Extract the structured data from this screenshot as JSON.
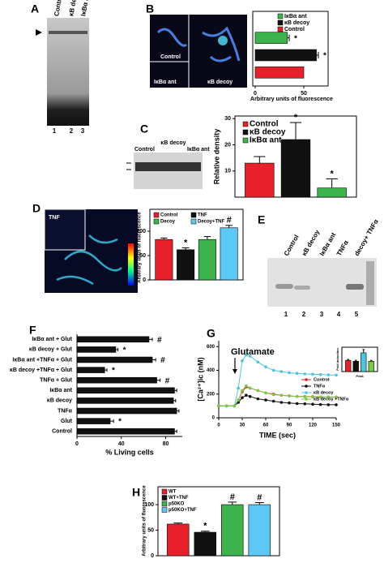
{
  "panels": {
    "A": {
      "letter": "A",
      "lanes": [
        "Control",
        "κB decoy",
        "IκBα ant"
      ],
      "numbers": [
        "1",
        "2",
        "3"
      ]
    },
    "B": {
      "images": [
        "Control",
        "IκBα ant",
        "κB decoy"
      ]
    },
    "C": {
      "lanes": [
        "Control",
        "κB decoy",
        "IκBα ant"
      ]
    },
    "D": {
      "images": [
        "TNF"
      ]
    },
    "E": {
      "letter": "E",
      "lanes": [
        "Control",
        "κB decoy",
        "IκBα ant",
        "TNFα",
        "decoy+ TNFα"
      ],
      "numbers": [
        "1",
        "2",
        "3",
        "4",
        "5"
      ]
    }
  },
  "chart_data": [
    {
      "type": "hbar",
      "panel": "B",
      "xlabel": "Arbitrary units of fluorescence",
      "categories": [
        "IκBα ant",
        "κB decoy",
        "Control"
      ],
      "values": [
        33,
        63,
        50
      ],
      "errors": [
        2,
        2,
        null
      ],
      "annotations": [
        "*",
        "*",
        null
      ],
      "colors": [
        "#3cb44b",
        "#111111",
        "#e8202a"
      ],
      "xlim": [
        0,
        75
      ],
      "xticks": [
        0,
        50
      ]
    },
    {
      "type": "bar",
      "panel": "C",
      "ylabel": "Relative density",
      "categories": [
        "Control",
        "κB decoy",
        "IκBα ant"
      ],
      "values": [
        13,
        22,
        3.5
      ],
      "errors": [
        2.5,
        6.5,
        3.5
      ],
      "annotations": [
        null,
        "*",
        "*"
      ],
      "colors": [
        "#e8202a",
        "#111111",
        "#3cb44b"
      ],
      "ylim": [
        0,
        31
      ],
      "yticks": [
        10,
        20,
        30
      ]
    },
    {
      "type": "bar",
      "panel": "D",
      "ylabel": "Arbitrary units of fluorescence",
      "categories": [
        "Control",
        "TNF",
        "Decoy",
        "Decoy+TNF"
      ],
      "values": [
        83,
        62,
        83,
        107
      ],
      "errors": [
        3,
        4,
        6,
        5
      ],
      "annotations": [
        null,
        "*",
        null,
        "#"
      ],
      "colors": [
        "#e8202a",
        "#111111",
        "#3cb44b",
        "#5bc8f5"
      ],
      "ylim": [
        0,
        145
      ],
      "yticks": [
        0,
        50,
        100
      ]
    },
    {
      "type": "hbar",
      "panel": "F",
      "xlabel": "% Living cells",
      "categories": [
        "IκBα ant + Glut",
        "κB decoy + Glut",
        "IκBα ant +TNFα + Glut",
        "κB decoy +TNFα + Glut",
        "TNFα + Glut",
        "IκBα ant",
        "κB decoy",
        "TNFα",
        "Glut",
        "Control"
      ],
      "values": [
        65,
        35,
        68,
        25,
        72,
        88,
        87,
        90,
        30,
        88
      ],
      "errors": [
        3,
        2,
        3,
        2,
        3,
        2,
        2,
        2,
        3,
        2
      ],
      "annotations": [
        "#",
        "*",
        "#",
        "*",
        "#",
        null,
        null,
        null,
        "*",
        null
      ],
      "color": "#111111",
      "xlim": [
        0,
        95
      ],
      "xticks": [
        0,
        40,
        80
      ]
    },
    {
      "type": "line",
      "panel": "G",
      "xlabel": "TIME (sec)",
      "ylabel": "[Ca²⁺]ic (nM)",
      "annotation": "Glutamate",
      "x": [
        0,
        10,
        20,
        25,
        30,
        35,
        40,
        50,
        60,
        70,
        80,
        90,
        100,
        110,
        120,
        130,
        140,
        150
      ],
      "series": [
        {
          "name": "Control",
          "color": "#e8202a",
          "values": [
            100,
            100,
            100,
            150,
            220,
            260,
            250,
            230,
            210,
            200,
            190,
            185,
            180,
            180,
            178,
            175,
            175,
            175
          ]
        },
        {
          "name": "TNFα",
          "color": "#111111",
          "values": [
            100,
            100,
            100,
            130,
            170,
            190,
            180,
            160,
            150,
            140,
            130,
            125,
            120,
            118,
            115,
            112,
            110,
            110
          ]
        },
        {
          "name": "κB decoy",
          "color": "#4cc3e0",
          "values": [
            100,
            100,
            100,
            250,
            480,
            530,
            520,
            470,
            430,
            400,
            390,
            380,
            375,
            370,
            368,
            365,
            362,
            360
          ]
        },
        {
          "name": "κB decoy +TNFα",
          "color": "#7ac943",
          "values": [
            100,
            100,
            100,
            150,
            230,
            270,
            250,
            230,
            210,
            195,
            190,
            185,
            180,
            178,
            176,
            175,
            175,
            175
          ]
        }
      ],
      "xlim": [
        0,
        150
      ],
      "xticks": [
        0,
        30,
        60,
        90,
        120,
        150
      ],
      "ylim": [
        0,
        650
      ],
      "yticks": [
        0,
        200,
        400,
        600
      ]
    },
    {
      "type": "bar",
      "ylabel": "Fold induction",
      "xlabel": "Peak",
      "values": [
        1.2,
        1.1,
        2.0,
        1.1
      ],
      "errors": [
        0.1,
        0.1,
        0.35,
        0.1
      ],
      "colors": [
        "#e8202a",
        "#111111",
        "#4cc3e0",
        "#7ac943"
      ],
      "ylim": [
        0,
        2.6
      ]
    },
    {
      "type": "bar",
      "panel": "H",
      "ylabel": "Arbitrary units of fluorescence",
      "categories": [
        "WT",
        "WT+TNF",
        "p50KO",
        "p50KO+TNF"
      ],
      "values": [
        62,
        46,
        100,
        100
      ],
      "errors": [
        2,
        2,
        5,
        4
      ],
      "annotations": [
        null,
        "*",
        "#",
        "#"
      ],
      "colors": [
        "#e8202a",
        "#111111",
        "#3cb44b",
        "#5bc8f5"
      ],
      "ylim": [
        0,
        135
      ],
      "yticks": [
        0,
        50,
        100
      ]
    }
  ]
}
